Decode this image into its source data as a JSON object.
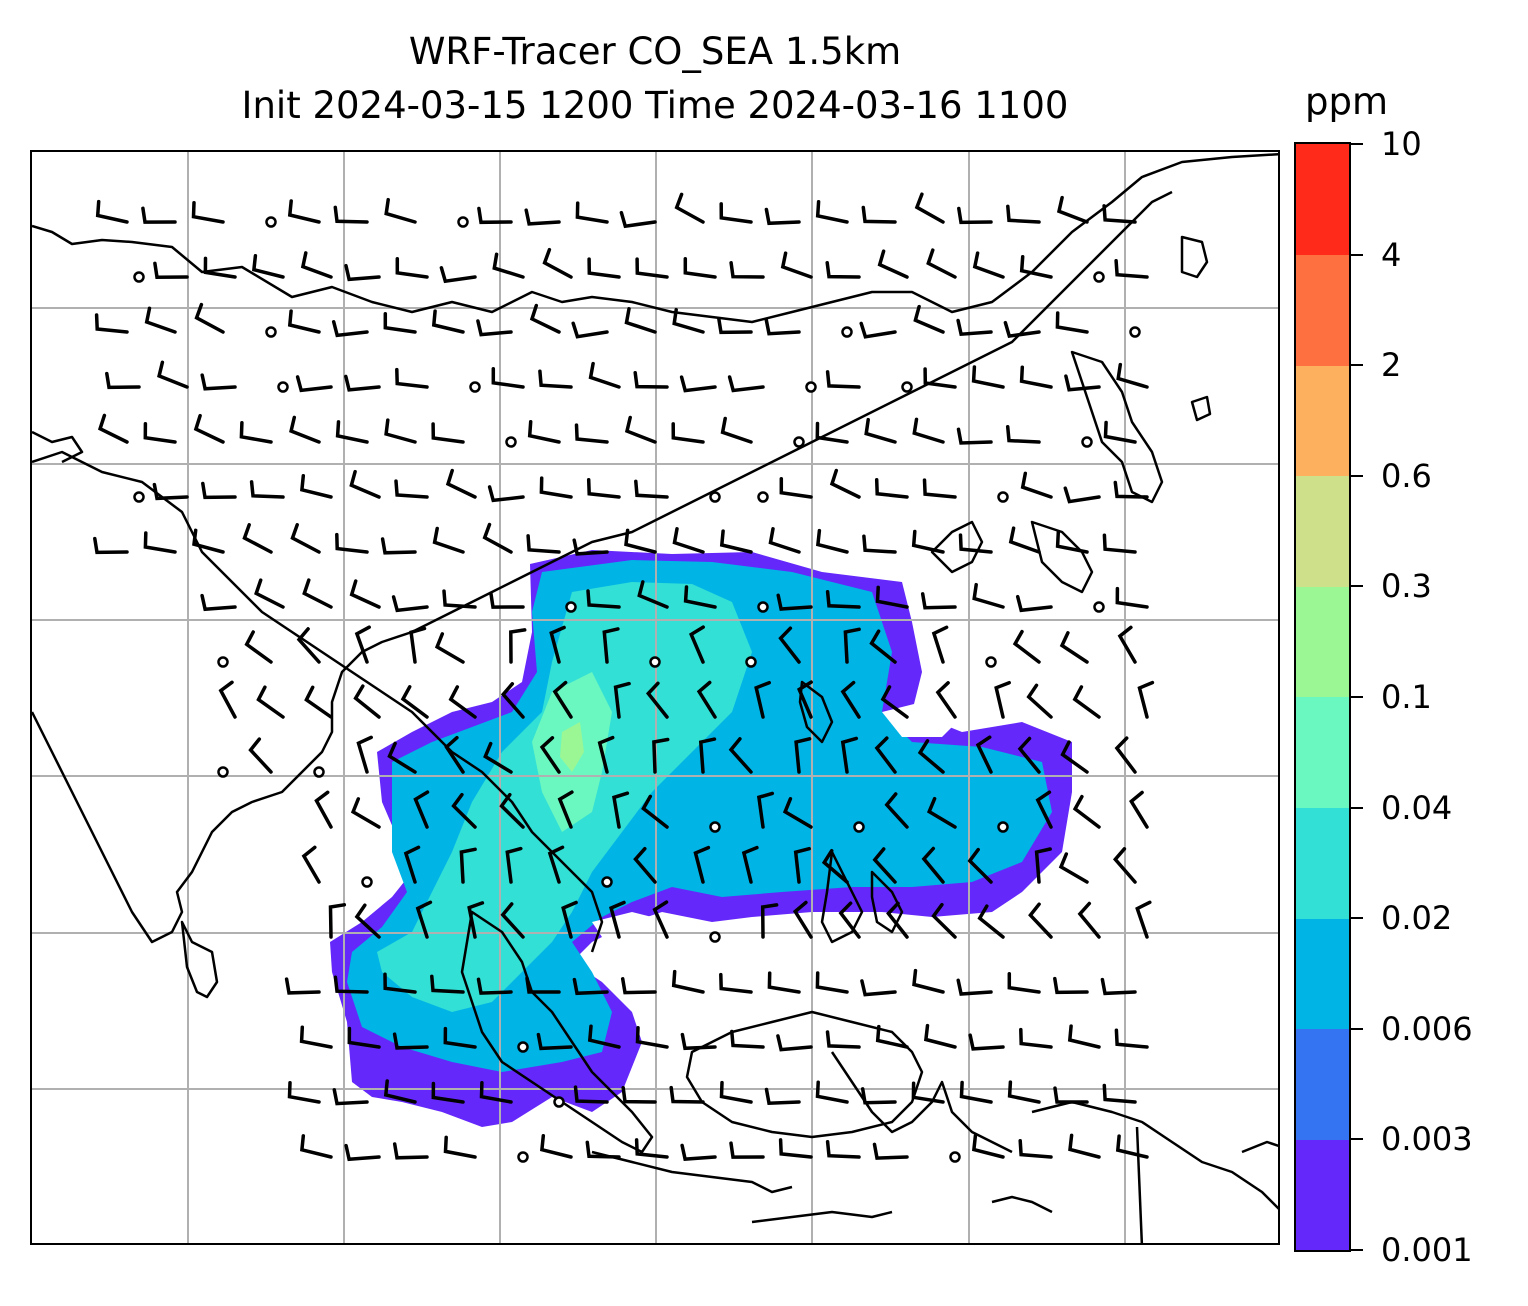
{
  "title": {
    "line1": "WRF-Tracer CO_SEA 1.5km",
    "line2": "Init 2024-03-15 1200 Time 2024-03-16 1100"
  },
  "colorbar": {
    "unit": "ppm",
    "levels": [
      "0.001",
      "0.003",
      "0.006",
      "0.02",
      "0.04",
      "0.1",
      "0.3",
      "0.6",
      "2",
      "4",
      "10"
    ],
    "colors": [
      "#6428fa",
      "#3473f2",
      "#00b4e6",
      "#32e0d5",
      "#6af8c0",
      "#9af794",
      "#cfe08a",
      "#fdb05e",
      "#ff7040",
      "#ff2a1a"
    ]
  },
  "map": {
    "gridlines": true,
    "coastline_color": "#000000",
    "grid_color": "#b0b0b0",
    "symbols": [
      "wind-barbs",
      "calm-wind-circles",
      "co-tracer-shading"
    ]
  }
}
